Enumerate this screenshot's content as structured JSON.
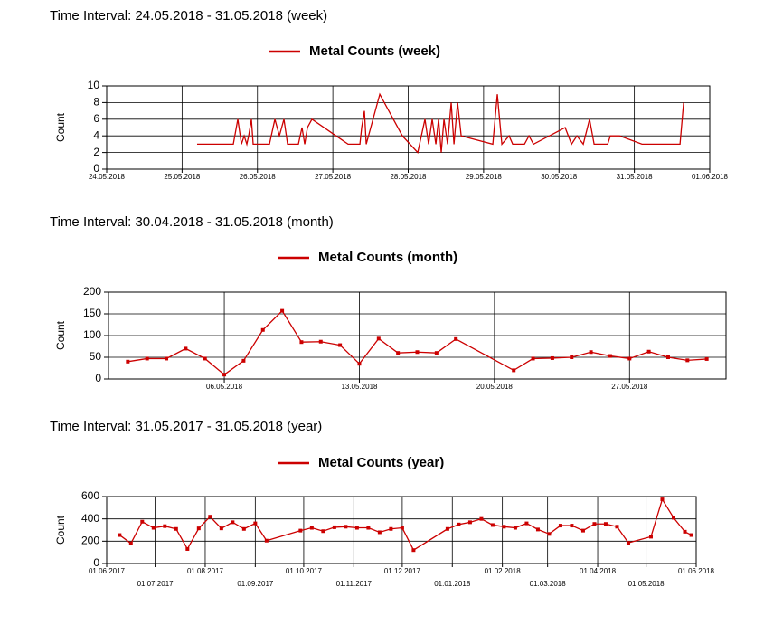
{
  "chart_data": [
    {
      "type": "line",
      "heading": "Time Interval:  24.05.2018 - 31.05.2018 (week)",
      "title": "Metal Counts (week)",
      "y_label": "Count",
      "color": "#cc0000",
      "markers": false,
      "grid": true,
      "x": [
        "2018-05-25T04:47",
        "2018-05-25T16:19",
        "2018-05-25T17:45",
        "2018-05-25T18:54",
        "2018-05-25T19:46",
        "2018-05-25T20:37",
        "2018-05-25T21:12",
        "2018-05-25T22:04",
        "2018-05-25T22:38",
        "2018-05-26T03:49",
        "2018-05-26T05:33",
        "2018-05-26T06:59",
        "2018-05-26T08:26",
        "2018-05-26T09:35",
        "2018-05-26T13:02",
        "2018-05-26T14:11",
        "2018-05-26T15:03",
        "2018-05-26T15:55",
        "2018-05-26T17:21",
        "2018-05-27T04:52",
        "2018-05-27T08:37",
        "2018-05-27T09:11",
        "2018-05-27T10:03",
        "2018-05-27T10:38",
        "2018-05-27T14:57",
        "2018-05-27T22:08",
        "2018-05-28T03:02",
        "2018-05-28T05:20",
        "2018-05-28T06:29",
        "2018-05-28T07:38",
        "2018-05-28T08:48",
        "2018-05-28T09:40",
        "2018-05-28T10:31",
        "2018-05-28T11:23",
        "2018-05-28T12:32",
        "2018-05-28T13:41",
        "2018-05-28T14:34",
        "2018-05-28T15:43",
        "2018-05-28T16:52",
        "2018-05-29T02:56",
        "2018-05-29T04:22",
        "2018-05-29T05:49",
        "2018-05-29T08:07",
        "2018-05-29T09:16",
        "2018-05-29T13:01",
        "2018-05-29T14:27",
        "2018-05-29T15:53",
        "2018-05-30T01:58",
        "2018-05-30T03:59",
        "2018-05-30T05:43",
        "2018-05-30T07:44",
        "2018-05-30T09:44",
        "2018-05-30T11:11",
        "2018-05-30T15:30",
        "2018-05-30T16:22",
        "2018-05-30T19:14",
        "2018-05-31T02:26",
        "2018-05-31T14:32",
        "2018-05-31T15:41"
      ],
      "values": [
        3,
        3,
        6,
        3,
        4,
        3,
        4,
        6,
        3,
        3,
        6,
        4,
        6,
        3,
        3,
        5,
        3,
        5,
        6,
        3,
        3,
        5,
        7,
        3,
        9,
        4,
        2,
        6,
        3,
        6,
        3,
        6,
        2,
        6,
        3,
        8,
        3,
        8,
        4,
        3,
        9,
        3,
        4,
        3,
        3,
        4,
        3,
        5,
        3,
        4,
        3,
        6,
        3,
        3,
        4,
        4,
        3,
        3,
        8
      ],
      "xlim": [
        "2018-05-24",
        "2018-06-01"
      ],
      "xticks": [
        {
          "value": "2018-05-24",
          "label": "24.05.2018"
        },
        {
          "value": "2018-05-25",
          "label": "25.05.2018"
        },
        {
          "value": "2018-05-26",
          "label": "26.05.2018"
        },
        {
          "value": "2018-05-27",
          "label": "27.05.2018"
        },
        {
          "value": "2018-05-28",
          "label": "28.05.2018"
        },
        {
          "value": "2018-05-29",
          "label": "29.05.2018"
        },
        {
          "value": "2018-05-30",
          "label": "30.05.2018"
        },
        {
          "value": "2018-05-31",
          "label": "31.05.2018"
        },
        {
          "value": "2018-06-01",
          "label": "01.06.2018"
        }
      ],
      "ylim": [
        0,
        10
      ],
      "yticks": [
        0,
        2,
        4,
        6,
        8,
        10
      ]
    },
    {
      "type": "line",
      "heading": "Time Interval:  30.04.2018 - 31.05.2018 (month)",
      "title": "Metal Counts (month)",
      "y_label": "Count",
      "color": "#cc0000",
      "markers": true,
      "grid": true,
      "x": [
        "2018-05-01",
        "2018-05-02",
        "2018-05-03",
        "2018-05-04",
        "2018-05-05",
        "2018-05-06",
        "2018-05-07",
        "2018-05-08",
        "2018-05-09",
        "2018-05-10",
        "2018-05-11",
        "2018-05-12",
        "2018-05-13",
        "2018-05-14",
        "2018-05-15",
        "2018-05-16",
        "2018-05-17",
        "2018-05-18",
        "2018-05-21",
        "2018-05-22",
        "2018-05-23",
        "2018-05-24",
        "2018-05-25",
        "2018-05-26",
        "2018-05-27",
        "2018-05-28",
        "2018-05-29",
        "2018-05-30",
        "2018-05-31"
      ],
      "values": [
        40,
        47,
        47,
        70,
        47,
        10,
        42,
        113,
        157,
        85,
        86,
        78,
        35,
        93,
        60,
        62,
        60,
        92,
        20,
        47,
        48,
        50,
        62,
        53,
        47,
        63,
        50,
        43,
        46
      ],
      "xlim": [
        "2018-04-30",
        "2018-06-01"
      ],
      "xticks": [
        {
          "value": "2018-05-06",
          "label": "06.05.2018"
        },
        {
          "value": "2018-05-13",
          "label": "13.05.2018"
        },
        {
          "value": "2018-05-20",
          "label": "20.05.2018"
        },
        {
          "value": "2018-05-27",
          "label": "27.05.2018"
        }
      ],
      "ylim": [
        0,
        200
      ],
      "yticks": [
        0,
        50,
        100,
        150,
        200
      ]
    },
    {
      "type": "line",
      "heading": "Time Interval:  31.05.2017 - 31.05.2018 (year)",
      "title": "Metal Counts (year)",
      "y_label": "Count",
      "color": "#cc0000",
      "markers": true,
      "grid": true,
      "x": [
        "2017-06-09",
        "2017-06-16",
        "2017-06-23",
        "2017-06-30",
        "2017-07-07",
        "2017-07-14",
        "2017-07-21",
        "2017-07-28",
        "2017-08-04",
        "2017-08-11",
        "2017-08-18",
        "2017-08-25",
        "2017-09-01",
        "2017-09-08",
        "2017-09-29",
        "2017-10-06",
        "2017-10-13",
        "2017-10-20",
        "2017-10-27",
        "2017-11-03",
        "2017-11-10",
        "2017-11-17",
        "2017-11-24",
        "2017-12-01",
        "2017-12-08",
        "2017-12-29",
        "2018-01-05",
        "2018-01-12",
        "2018-01-19",
        "2018-01-26",
        "2018-02-02",
        "2018-02-09",
        "2018-02-16",
        "2018-02-23",
        "2018-03-02",
        "2018-03-09",
        "2018-03-16",
        "2018-03-23",
        "2018-03-30",
        "2018-04-06",
        "2018-04-13",
        "2018-04-20",
        "2018-05-04",
        "2018-05-11",
        "2018-05-18",
        "2018-05-25",
        "2018-05-29"
      ],
      "values": [
        255,
        180,
        375,
        320,
        335,
        310,
        130,
        315,
        420,
        315,
        370,
        310,
        360,
        205,
        295,
        320,
        290,
        325,
        330,
        320,
        320,
        280,
        310,
        320,
        120,
        310,
        350,
        370,
        400,
        345,
        330,
        320,
        360,
        305,
        265,
        340,
        340,
        295,
        355,
        355,
        330,
        185,
        240,
        575,
        410,
        285,
        255
      ],
      "xlim": [
        "2017-06-01",
        "2018-06-01"
      ],
      "xticks": [
        {
          "value": "2017-06-01",
          "label": "01.06.2017"
        },
        {
          "value": "2017-07-01",
          "label": "01.07.2017"
        },
        {
          "value": "2017-08-01",
          "label": "01.08.2017"
        },
        {
          "value": "2017-09-01",
          "label": "01.09.2017"
        },
        {
          "value": "2017-10-01",
          "label": "01.10.2017"
        },
        {
          "value": "2017-11-01",
          "label": "01.11.2017"
        },
        {
          "value": "2017-12-01",
          "label": "01.12.2017"
        },
        {
          "value": "2018-01-01",
          "label": "01.01.2018"
        },
        {
          "value": "2018-02-01",
          "label": "01.02.2018"
        },
        {
          "value": "2018-03-01",
          "label": "01.03.2018"
        },
        {
          "value": "2018-04-01",
          "label": "01.04.2018"
        },
        {
          "value": "2018-05-01",
          "label": "01.05.2018"
        },
        {
          "value": "2018-06-01",
          "label": "01.06.2018"
        }
      ],
      "ylim": [
        0,
        600
      ],
      "yticks": [
        0,
        200,
        400,
        600
      ]
    }
  ]
}
